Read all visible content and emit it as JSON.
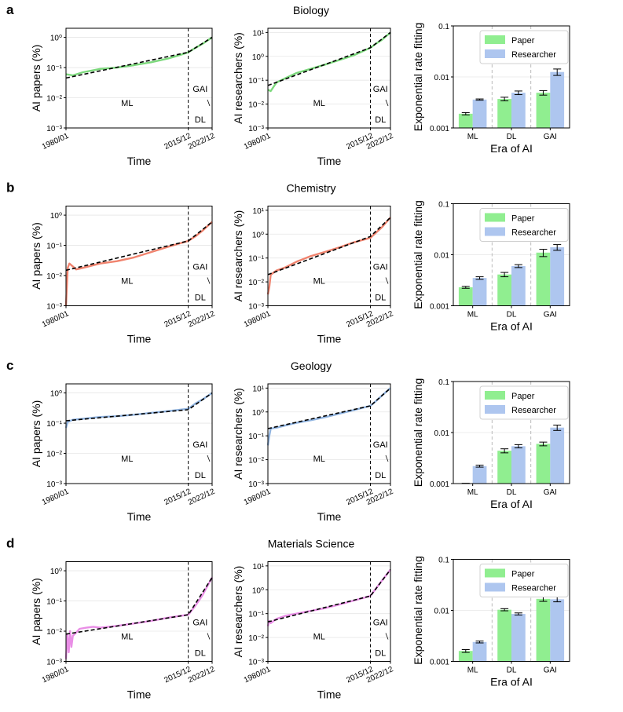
{
  "colors": {
    "paper_bar": "#90ee90",
    "researcher_bar": "#aec6ef",
    "fit_line": "#000000",
    "series": {
      "Biology": "#7cd97c",
      "Chemistry": "#f0836e",
      "Geology": "#8fb3e0",
      "Materials Science": "#e98ee6"
    }
  },
  "common": {
    "time_xlabel": "Time",
    "papers_ylabel": "AI papers (%)",
    "researchers_ylabel": "AI researchers (%)",
    "era_xlabel": "Era of AI",
    "rate_ylabel": "Exponential rate fitting",
    "time_ticks": [
      "1980/01",
      "2015/12",
      "2022/12"
    ],
    "era_labels": [
      "ML",
      "DL",
      "GAI"
    ],
    "papers_yticks": [
      "10⁻³",
      "10⁻²",
      "10⁻¹",
      "10⁰"
    ],
    "researchers_yticks": [
      "10⁻³",
      "10⁻²",
      "10⁻¹",
      "10⁰",
      "10¹"
    ],
    "rate_yticks": [
      "0.001",
      "0.01",
      "0.1"
    ],
    "legend": [
      "Paper",
      "Researcher"
    ]
  },
  "chart_data": [
    {
      "panel": "a",
      "title": "Biology",
      "papers": {
        "type": "line",
        "xlabel": "Time",
        "ylabel": "AI papers (%)",
        "yscale": "log",
        "ylim": [
          0.001,
          2
        ],
        "x": [
          1980,
          1982,
          1985,
          1990,
          1995,
          2000,
          2005,
          2010,
          2013,
          2015.9,
          2018,
          2020,
          2022.9
        ],
        "y": [
          0.06,
          0.055,
          0.07,
          0.09,
          0.1,
          0.12,
          0.15,
          0.2,
          0.25,
          0.32,
          0.45,
          0.6,
          1.0
        ],
        "fit": [
          [
            1980,
            0.045
          ],
          [
            2015.9,
            0.32
          ],
          [
            2022.9,
            1.0
          ]
        ]
      },
      "researchers": {
        "type": "line",
        "xlabel": "Time",
        "ylabel": "AI researchers (%)",
        "yscale": "log",
        "ylim": [
          0.001,
          15
        ],
        "x": [
          1980,
          1981,
          1983,
          1986,
          1990,
          1995,
          2000,
          2005,
          2010,
          2013,
          2015.9,
          2018,
          2020,
          2022.9
        ],
        "y": [
          0.04,
          0.035,
          0.08,
          0.12,
          0.2,
          0.3,
          0.45,
          0.7,
          1.1,
          1.6,
          2.3,
          3.5,
          5.0,
          10.0
        ],
        "fit": [
          [
            1980,
            0.06
          ],
          [
            2015.9,
            2.3
          ],
          [
            2022.9,
            10.0
          ]
        ]
      },
      "rates": {
        "type": "bar",
        "xlabel": "Era of AI",
        "ylabel": "Exponential rate fitting",
        "yscale": "log",
        "ylim": [
          0.001,
          0.1
        ],
        "categories": [
          "ML",
          "DL",
          "GAI"
        ],
        "series": [
          {
            "name": "Paper",
            "values": [
              0.0019,
              0.0037,
              0.0049
            ],
            "errors": [
              0.0001,
              0.0003,
              0.0005
            ]
          },
          {
            "name": "Researcher",
            "values": [
              0.0036,
              0.0049,
              0.0125
            ],
            "errors": [
              0.0001,
              0.0004,
              0.0018
            ]
          }
        ]
      }
    },
    {
      "panel": "b",
      "title": "Chemistry",
      "papers": {
        "type": "line",
        "xlabel": "Time",
        "ylabel": "AI papers (%)",
        "yscale": "log",
        "ylim": [
          0.001,
          2
        ],
        "x": [
          1980,
          1980.5,
          1981,
          1982,
          1983,
          1985,
          1990,
          1995,
          2000,
          2005,
          2010,
          2015.9,
          2018,
          2020,
          2022.9
        ],
        "y": [
          0.001,
          0.018,
          0.025,
          0.02,
          0.016,
          0.018,
          0.025,
          0.03,
          0.04,
          0.06,
          0.09,
          0.14,
          0.2,
          0.3,
          0.6
        ],
        "fit": [
          [
            1980,
            0.015
          ],
          [
            2015.9,
            0.14
          ],
          [
            2022.9,
            0.6
          ]
        ]
      },
      "researchers": {
        "type": "line",
        "xlabel": "Time",
        "ylabel": "AI researchers (%)",
        "yscale": "log",
        "ylim": [
          0.001,
          15
        ],
        "x": [
          1980,
          1980.5,
          1981,
          1983,
          1986,
          1990,
          1995,
          2000,
          2005,
          2010,
          2015.9,
          2018,
          2020,
          2022.9
        ],
        "y": [
          0.003,
          0.006,
          0.02,
          0.03,
          0.04,
          0.07,
          0.12,
          0.18,
          0.28,
          0.45,
          0.7,
          1.2,
          2.0,
          5.0
        ],
        "fit": [
          [
            1980,
            0.02
          ],
          [
            2015.9,
            0.8
          ],
          [
            2022.9,
            5.0
          ]
        ]
      },
      "rates": {
        "type": "bar",
        "xlabel": "Era of AI",
        "ylabel": "Exponential rate fitting",
        "yscale": "log",
        "ylim": [
          0.001,
          0.1
        ],
        "categories": [
          "ML",
          "DL",
          "GAI"
        ],
        "series": [
          {
            "name": "Paper",
            "values": [
              0.0023,
              0.0041,
              0.011
            ],
            "errors": [
              0.0001,
              0.0004,
              0.0018
            ]
          },
          {
            "name": "Researcher",
            "values": [
              0.0035,
              0.006,
              0.014
            ],
            "errors": [
              0.0002,
              0.0004,
              0.0018
            ]
          }
        ]
      }
    },
    {
      "panel": "c",
      "title": "Geology",
      "papers": {
        "type": "line",
        "xlabel": "Time",
        "ylabel": "AI papers (%)",
        "yscale": "log",
        "ylim": [
          0.001,
          2
        ],
        "x": [
          1980,
          1980.5,
          1982,
          1985,
          1990,
          1995,
          2000,
          2005,
          2010,
          2015.9,
          2018,
          2020,
          2022.9
        ],
        "y": [
          0.07,
          0.11,
          0.13,
          0.14,
          0.16,
          0.17,
          0.19,
          0.22,
          0.25,
          0.3,
          0.45,
          0.6,
          1.0
        ],
        "fit": [
          [
            1980,
            0.12
          ],
          [
            2015.9,
            0.28
          ],
          [
            2022.9,
            1.0
          ]
        ]
      },
      "researchers": {
        "type": "line",
        "xlabel": "Time",
        "ylabel": "AI researchers (%)",
        "yscale": "log",
        "ylim": [
          0.001,
          15
        ],
        "x": [
          1980,
          1980.5,
          1981,
          1983,
          1986,
          1990,
          1995,
          2000,
          2005,
          2010,
          2015.9,
          2018,
          2020,
          2022.9
        ],
        "y": [
          0.04,
          0.1,
          0.2,
          0.22,
          0.27,
          0.35,
          0.45,
          0.6,
          0.85,
          1.2,
          1.8,
          3.0,
          5.0,
          10.0
        ],
        "fit": [
          [
            1980,
            0.2
          ],
          [
            2015.9,
            1.8
          ],
          [
            2022.9,
            10.0
          ]
        ]
      },
      "rates": {
        "type": "bar",
        "xlabel": "Era of AI",
        "ylabel": "Exponential rate fitting",
        "yscale": "log",
        "ylim": [
          0.001,
          0.1
        ],
        "categories": [
          "ML",
          "DL",
          "GAI"
        ],
        "series": [
          {
            "name": "Paper",
            "values": [
              0.00098,
              0.0044,
              0.006
            ],
            "errors": [
              3e-05,
              0.0004,
              0.0005
            ]
          },
          {
            "name": "Researcher",
            "values": [
              0.0022,
              0.0054,
              0.0125
            ],
            "errors": [
              0.0001,
              0.0004,
              0.0015
            ]
          }
        ]
      }
    },
    {
      "panel": "d",
      "title": "Materials Science",
      "papers": {
        "type": "line",
        "xlabel": "Time",
        "ylabel": "AI papers (%)",
        "yscale": "log",
        "ylim": [
          0.001,
          2
        ],
        "x": [
          1980,
          1980.4,
          1980.8,
          1981.2,
          1981.6,
          1982,
          1983,
          1984,
          1986,
          1988,
          1990,
          1995,
          2000,
          2005,
          2010,
          2015.9,
          2018,
          2020,
          2022.9
        ],
        "y": [
          0.0012,
          0.008,
          0.002,
          0.01,
          0.003,
          0.007,
          0.009,
          0.012,
          0.013,
          0.014,
          0.013,
          0.015,
          0.018,
          0.022,
          0.028,
          0.035,
          0.07,
          0.15,
          0.6
        ],
        "fit": [
          [
            1980,
            0.008
          ],
          [
            2015.9,
            0.035
          ],
          [
            2022.9,
            0.6
          ]
        ]
      },
      "researchers": {
        "type": "line",
        "xlabel": "Time",
        "ylabel": "AI researchers (%)",
        "yscale": "log",
        "ylim": [
          0.001,
          15
        ],
        "x": [
          1980,
          1980.5,
          1981,
          1983,
          1986,
          1990,
          1995,
          2000,
          2005,
          2010,
          2015.9,
          2018,
          2020,
          2022.9
        ],
        "y": [
          0.03,
          0.05,
          0.04,
          0.06,
          0.08,
          0.1,
          0.13,
          0.17,
          0.24,
          0.35,
          0.55,
          1.2,
          2.5,
          7.0
        ],
        "fit": [
          [
            1980,
            0.045
          ],
          [
            2015.9,
            0.55
          ],
          [
            2022.9,
            7.0
          ]
        ]
      },
      "rates": {
        "type": "bar",
        "xlabel": "Era of AI",
        "ylabel": "Exponential rate fitting",
        "yscale": "log",
        "ylim": [
          0.001,
          0.1
        ],
        "categories": [
          "ML",
          "DL",
          "GAI"
        ],
        "series": [
          {
            "name": "Paper",
            "values": [
              0.0016,
              0.0103,
              0.0168
            ],
            "errors": [
              0.0001,
              0.0005,
              0.0018
            ]
          },
          {
            "name": "Researcher",
            "values": [
              0.0024,
              0.0085,
              0.0165
            ],
            "errors": [
              0.0001,
              0.0004,
              0.0018
            ]
          }
        ]
      }
    }
  ]
}
